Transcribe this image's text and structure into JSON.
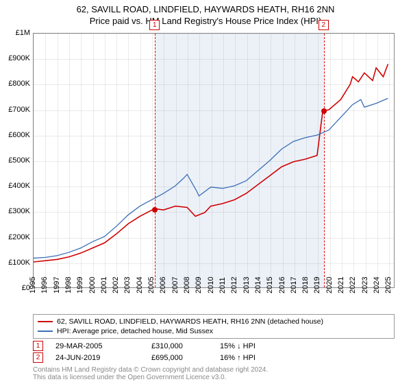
{
  "title": {
    "main": "62, SAVILL ROAD, LINDFIELD, HAYWARDS HEATH, RH16 2NN",
    "sub": "Price paid vs. HM Land Registry's House Price Index (HPI)"
  },
  "chart": {
    "type": "line",
    "x_min": 1995,
    "x_max": 2025.5,
    "y_min": 0,
    "y_max": 1000000,
    "y_ticks": [
      {
        "v": 0,
        "label": "£0"
      },
      {
        "v": 100000,
        "label": "£100K"
      },
      {
        "v": 200000,
        "label": "£200K"
      },
      {
        "v": 300000,
        "label": "£300K"
      },
      {
        "v": 400000,
        "label": "£400K"
      },
      {
        "v": 500000,
        "label": "£500K"
      },
      {
        "v": 600000,
        "label": "£600K"
      },
      {
        "v": 700000,
        "label": "£700K"
      },
      {
        "v": 800000,
        "label": "£800K"
      },
      {
        "v": 900000,
        "label": "£900K"
      },
      {
        "v": 1000000,
        "label": "£1M"
      }
    ],
    "x_ticks": [
      1995,
      1996,
      1997,
      1998,
      1999,
      2000,
      2001,
      2002,
      2003,
      2004,
      2005,
      2006,
      2007,
      2008,
      2009,
      2010,
      2011,
      2012,
      2013,
      2014,
      2015,
      2016,
      2017,
      2018,
      2019,
      2020,
      2021,
      2022,
      2023,
      2024,
      2025
    ],
    "background_color": "#ffffff",
    "grid_color": "rgba(0,0,0,0.08)",
    "shaded_region": {
      "x_start": 2005.24,
      "x_end": 2019.48,
      "color": "rgba(100,140,200,0.12)"
    },
    "series": [
      {
        "id": "price_paid",
        "color": "#d00000",
        "width": 1.6,
        "points": [
          [
            1995,
            100000
          ],
          [
            1996,
            105000
          ],
          [
            1997,
            110000
          ],
          [
            1998,
            120000
          ],
          [
            1999,
            135000
          ],
          [
            2000,
            155000
          ],
          [
            2001,
            175000
          ],
          [
            2002,
            210000
          ],
          [
            2003,
            250000
          ],
          [
            2004,
            280000
          ],
          [
            2005.24,
            310000
          ],
          [
            2006,
            305000
          ],
          [
            2007,
            320000
          ],
          [
            2008,
            315000
          ],
          [
            2008.7,
            280000
          ],
          [
            2009.5,
            295000
          ],
          [
            2010,
            320000
          ],
          [
            2011,
            330000
          ],
          [
            2012,
            345000
          ],
          [
            2013,
            370000
          ],
          [
            2014,
            405000
          ],
          [
            2015,
            440000
          ],
          [
            2016,
            475000
          ],
          [
            2017,
            495000
          ],
          [
            2018,
            505000
          ],
          [
            2019,
            520000
          ],
          [
            2019.48,
            695000
          ],
          [
            2020,
            700000
          ],
          [
            2021,
            740000
          ],
          [
            2021.8,
            800000
          ],
          [
            2022,
            830000
          ],
          [
            2022.5,
            810000
          ],
          [
            2023,
            845000
          ],
          [
            2023.7,
            815000
          ],
          [
            2024,
            865000
          ],
          [
            2024.6,
            830000
          ],
          [
            2025,
            880000
          ]
        ]
      },
      {
        "id": "hpi",
        "color": "#3b6fb6",
        "width": 1.3,
        "points": [
          [
            1995,
            115000
          ],
          [
            1996,
            118000
          ],
          [
            1997,
            125000
          ],
          [
            1998,
            138000
          ],
          [
            1999,
            155000
          ],
          [
            2000,
            180000
          ],
          [
            2001,
            200000
          ],
          [
            2002,
            240000
          ],
          [
            2003,
            285000
          ],
          [
            2004,
            320000
          ],
          [
            2005,
            345000
          ],
          [
            2006,
            370000
          ],
          [
            2007,
            400000
          ],
          [
            2007.7,
            430000
          ],
          [
            2008,
            445000
          ],
          [
            2008.8,
            380000
          ],
          [
            2009,
            360000
          ],
          [
            2010,
            395000
          ],
          [
            2011,
            390000
          ],
          [
            2012,
            400000
          ],
          [
            2013,
            420000
          ],
          [
            2014,
            460000
          ],
          [
            2015,
            500000
          ],
          [
            2016,
            545000
          ],
          [
            2017,
            575000
          ],
          [
            2018,
            590000
          ],
          [
            2019,
            600000
          ],
          [
            2020,
            620000
          ],
          [
            2021,
            670000
          ],
          [
            2022,
            720000
          ],
          [
            2022.7,
            740000
          ],
          [
            2023,
            710000
          ],
          [
            2024,
            725000
          ],
          [
            2025,
            745000
          ]
        ]
      }
    ],
    "markers": [
      {
        "n": "1",
        "x": 2005.24,
        "y": 310000
      },
      {
        "n": "2",
        "x": 2019.48,
        "y": 695000
      }
    ]
  },
  "legend": [
    {
      "color": "#d00000",
      "label": "62, SAVILL ROAD, LINDFIELD, HAYWARDS HEATH, RH16 2NN (detached house)"
    },
    {
      "color": "#3b6fb6",
      "label": "HPI: Average price, detached house, Mid Sussex"
    }
  ],
  "transactions": [
    {
      "n": "1",
      "date": "29-MAR-2005",
      "price": "£310,000",
      "diff": "15% ↓ HPI"
    },
    {
      "n": "2",
      "date": "24-JUN-2019",
      "price": "£695,000",
      "diff": "16% ↑ HPI"
    }
  ],
  "footer": {
    "line1": "Contains HM Land Registry data © Crown copyright and database right 2024.",
    "line2": "This data is licensed under the Open Government Licence v3.0."
  }
}
